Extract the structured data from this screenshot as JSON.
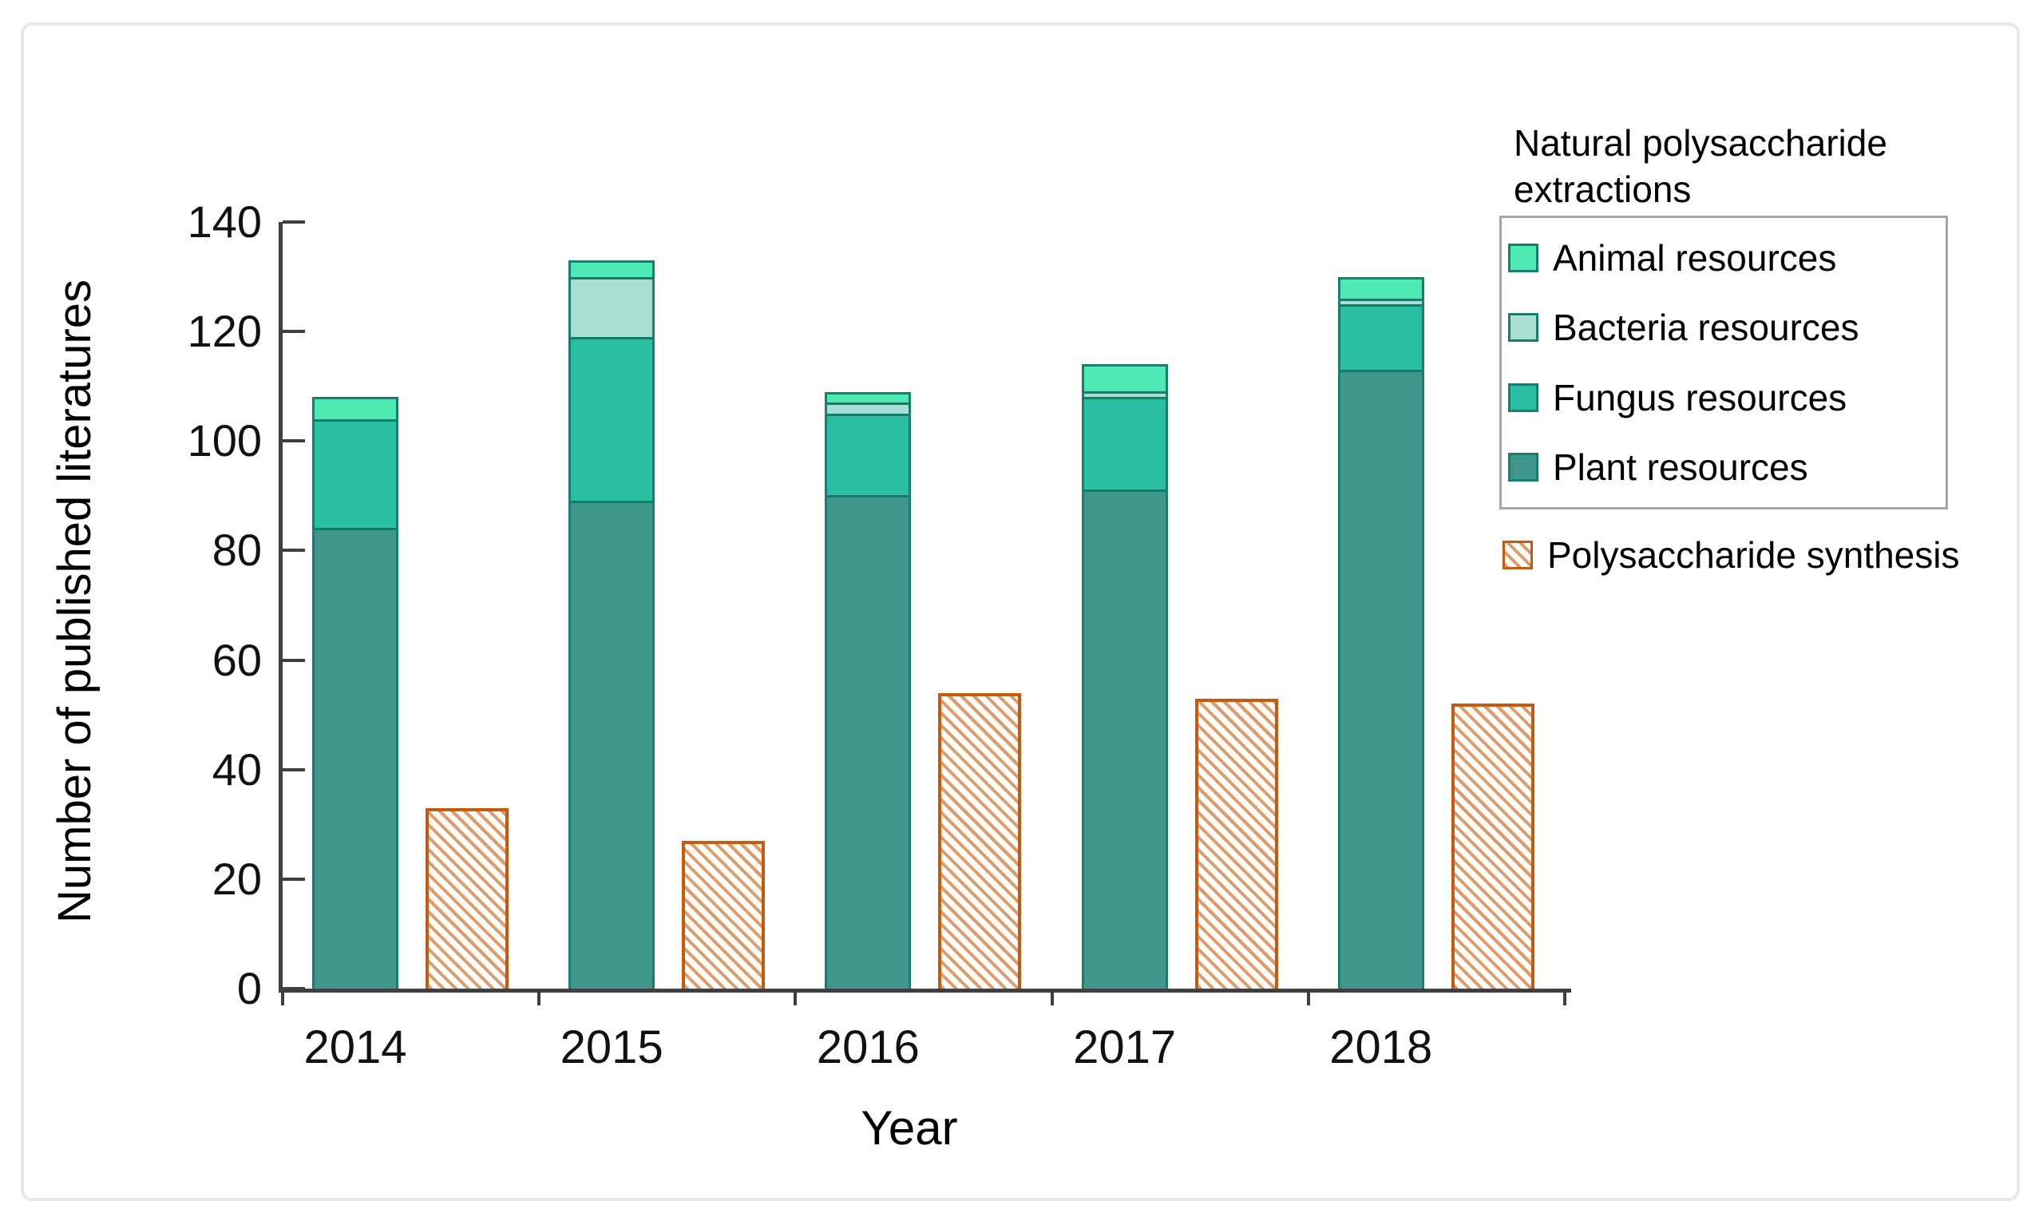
{
  "chart_data": {
    "type": "bar",
    "stacked": true,
    "xlabel": "Year",
    "ylabel": "Number of published literatures",
    "ylim": [
      0,
      140
    ],
    "yticks": [
      0,
      20,
      40,
      60,
      80,
      100,
      120,
      140
    ],
    "grid": false,
    "legend_position": "top-right",
    "categories": [
      "2014",
      "2015",
      "2016",
      "2017",
      "2018"
    ],
    "stacked_series": [
      {
        "name": "Plant resources",
        "values": [
          84,
          89,
          90,
          91,
          113
        ]
      },
      {
        "name": "Fungus resources",
        "values": [
          20,
          30,
          15,
          17,
          12
        ]
      },
      {
        "name": "Bacteria resources",
        "values": [
          0,
          11,
          2,
          1,
          1
        ]
      },
      {
        "name": "Animal resources",
        "values": [
          4,
          3,
          2,
          5,
          4
        ]
      }
    ],
    "stacked_totals": [
      108,
      133,
      109,
      114,
      130
    ],
    "separate_series": {
      "name": "Polysaccharide synthesis",
      "values": [
        33,
        27,
        54,
        53,
        52
      ],
      "pattern": "diagonal-hatch"
    }
  },
  "legend": {
    "title": "Natural polysaccharide extractions",
    "items": [
      {
        "key": "animal",
        "label": "Animal resources"
      },
      {
        "key": "bacteria",
        "label": "Bacteria resources"
      },
      {
        "key": "fungus",
        "label": "Fungus resources"
      },
      {
        "key": "plant",
        "label": "Plant resources"
      }
    ],
    "outside_item": {
      "key": "synthesis",
      "label": "Polysaccharide synthesis"
    }
  },
  "colors": {
    "animal": "#4FE9B3",
    "bacteria": "#A9DED3",
    "fungus": "#2ABFA2",
    "plant": "#3F968A",
    "segment_border": "#1A7E6E",
    "synthesis_border": "#C55A11",
    "synthesis_hatch": "#E29A66",
    "axis": "#3F3F3F",
    "legend_box_border": "#A6A6A6",
    "frame_border": "#E8E8E8"
  }
}
